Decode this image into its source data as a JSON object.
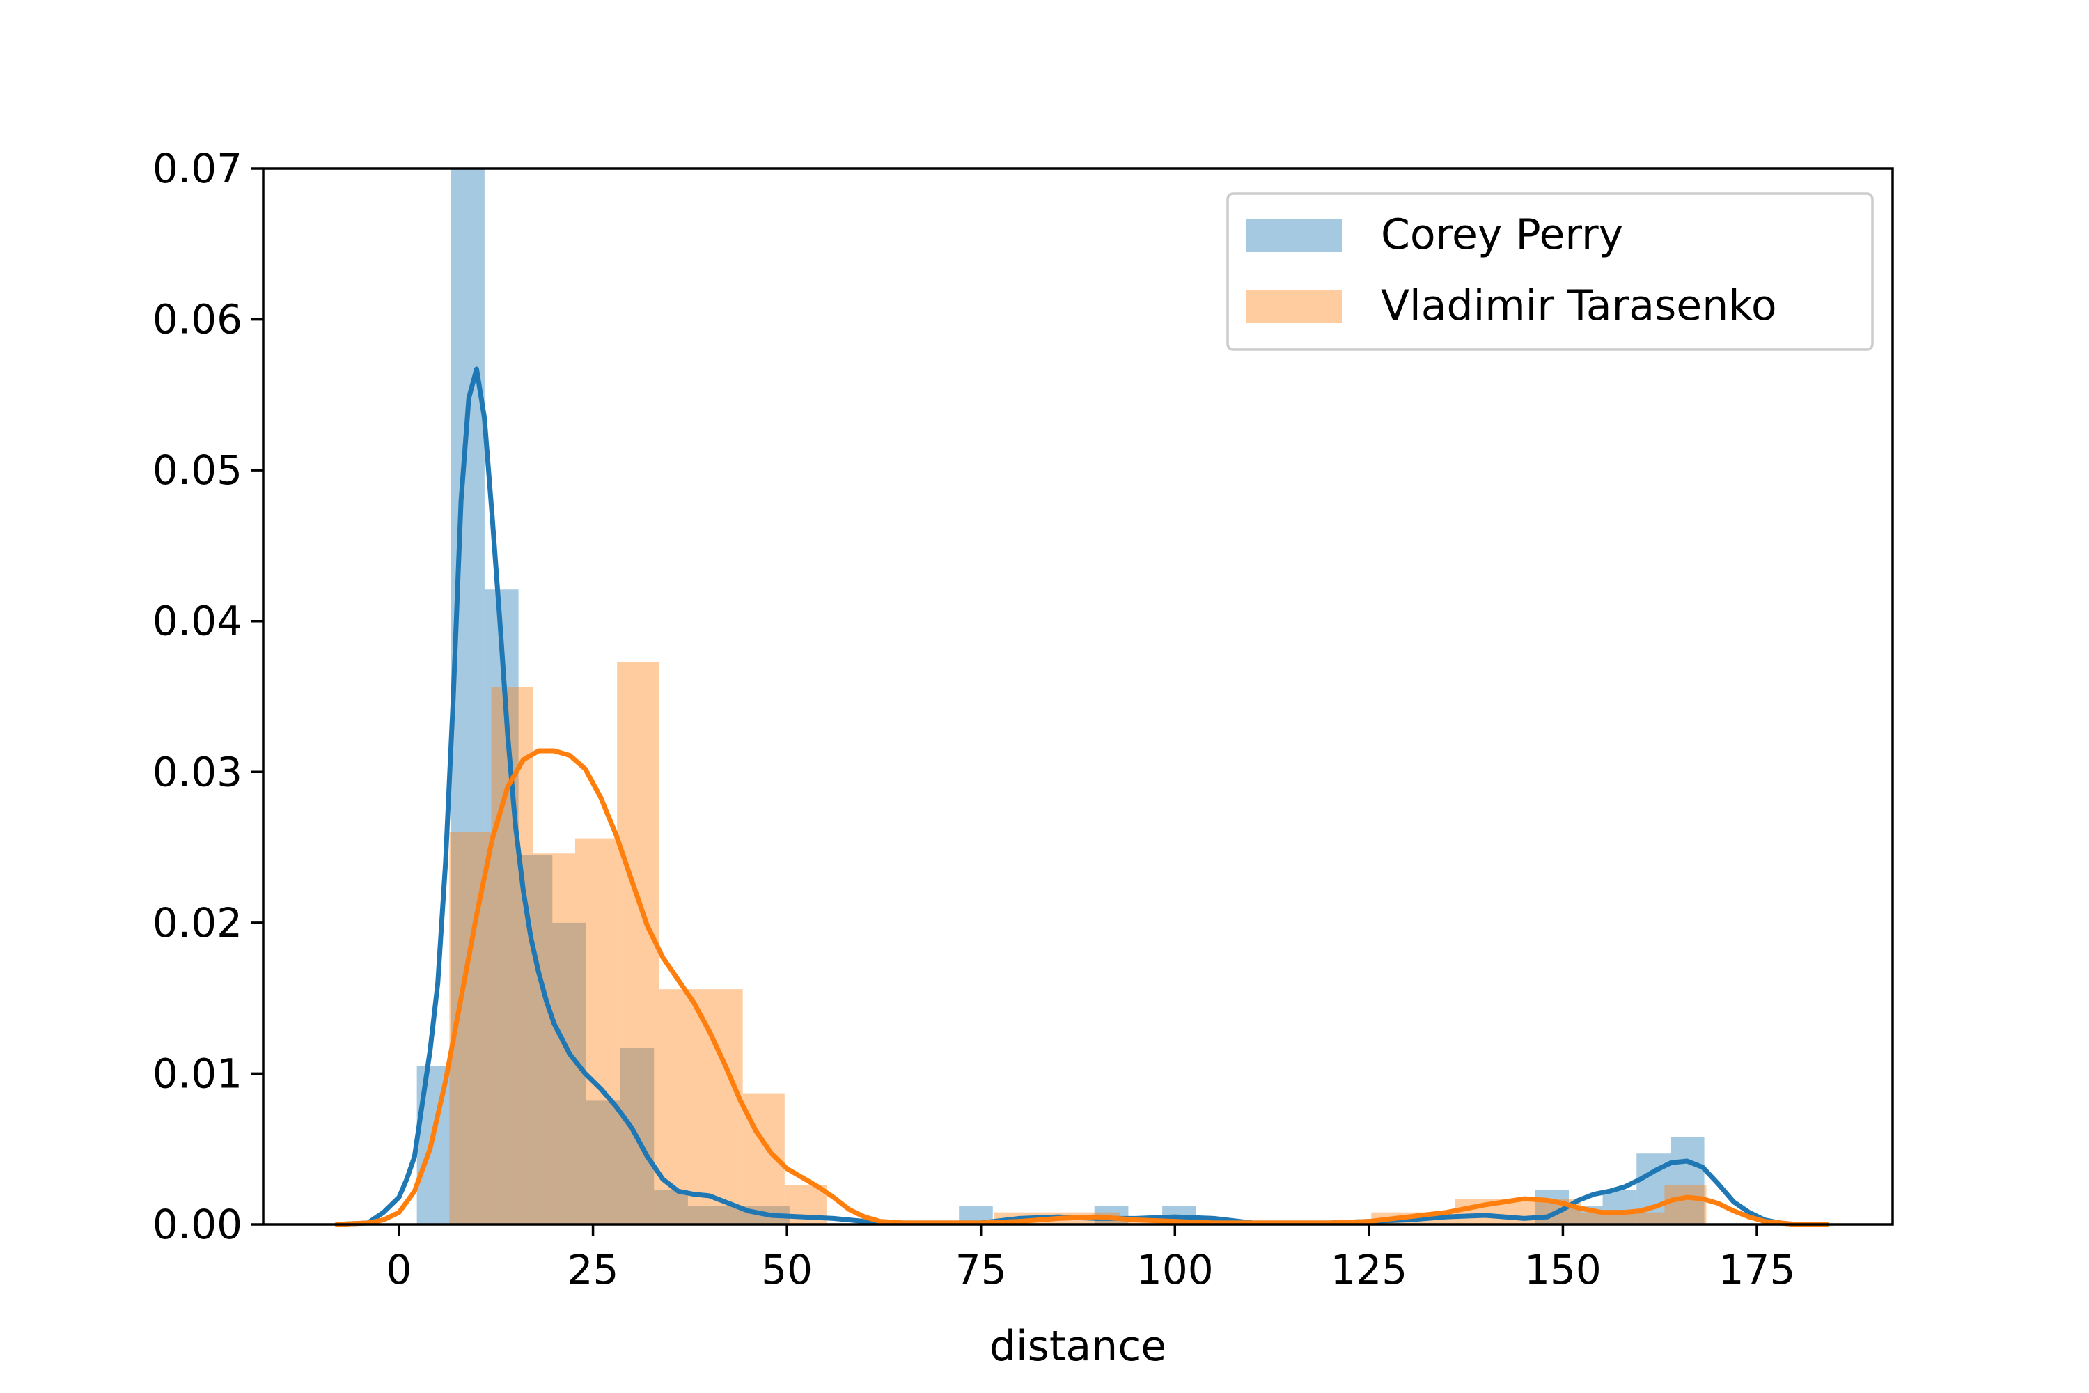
{
  "chart_data": {
    "type": "bar",
    "xlabel": "distance",
    "ylabel": "",
    "xlim": [
      -17.5,
      192.5
    ],
    "ylim": [
      0,
      0.07
    ],
    "x_ticks": [
      0,
      25,
      50,
      75,
      100,
      125,
      150,
      175
    ],
    "x_tick_labels": [
      "0",
      "25",
      "50",
      "75",
      "100",
      "125",
      "150",
      "175"
    ],
    "y_ticks": [
      0,
      0.01,
      0.02,
      0.03,
      0.04,
      0.05,
      0.06,
      0.07
    ],
    "y_tick_labels": [
      "0.00",
      "0.01",
      "0.02",
      "0.03",
      "0.04",
      "0.05",
      "0.06",
      "0.07"
    ],
    "legend_position": "top-right",
    "grid": false,
    "series": [
      {
        "name": "Corey Perry",
        "color": "#1f77b4",
        "hist_color": "#a6c8e0",
        "hist": {
          "bin_edges": [
            2.3,
            6.67,
            11.03,
            15.4,
            19.77,
            24.13,
            28.5,
            32.87,
            37.23,
            41.6,
            45.97,
            50.33,
            54.7,
            59.07,
            63.43,
            67.8,
            72.17,
            76.53,
            80.9,
            85.27,
            89.63,
            94,
            98.37,
            102.73,
            107.1,
            111.47,
            115.83,
            120.2,
            124.57,
            128.93,
            133.3,
            137.67,
            142.03,
            146.4,
            150.77,
            155.13,
            159.5,
            163.87,
            168.23
          ],
          "values": [
            0.0105,
            0.0702,
            0.0421,
            0.0245,
            0.02,
            0.0082,
            0.0117,
            0.0023,
            0.0012,
            0.0012,
            0.0012,
            0,
            0,
            0,
            0,
            0,
            0.0012,
            0,
            0,
            0,
            0.0012,
            0,
            0.0012,
            0,
            0,
            0,
            0,
            0,
            0,
            0,
            0,
            0,
            0,
            0.0023,
            0.0012,
            0.0023,
            0.0047,
            0.0058
          ]
        },
        "kde": {
          "x": [
            -8,
            -4,
            -2,
            0,
            1,
            2,
            3,
            4,
            5,
            6,
            7,
            8,
            9,
            10,
            11,
            12,
            13,
            14,
            15,
            16,
            17,
            18,
            19,
            20,
            22,
            24,
            26,
            28,
            30,
            32,
            34,
            36,
            38,
            40,
            42,
            45,
            48,
            52,
            56,
            60,
            65,
            70,
            75,
            80,
            85,
            90,
            95,
            100,
            105,
            110,
            115,
            120,
            125,
            130,
            135,
            140,
            145,
            148,
            150,
            152,
            154,
            156,
            158,
            160,
            162,
            164,
            166,
            168,
            170,
            172,
            174,
            176,
            178,
            180,
            184
          ],
          "y": [
            0,
            0.0001,
            0.0008,
            0.0018,
            0.003,
            0.0045,
            0.008,
            0.0115,
            0.016,
            0.024,
            0.035,
            0.048,
            0.0548,
            0.0567,
            0.0535,
            0.047,
            0.04,
            0.0325,
            0.0265,
            0.0222,
            0.019,
            0.0167,
            0.0148,
            0.0133,
            0.0113,
            0.01,
            0.009,
            0.0078,
            0.0064,
            0.0045,
            0.003,
            0.0022,
            0.002,
            0.0019,
            0.0015,
            0.0009,
            0.0006,
            0.0005,
            0.0004,
            0.0002,
            0.0001,
            0.0001,
            0.0001,
            0.0004,
            0.0005,
            0.0004,
            0.0004,
            0.0005,
            0.0004,
            0.0001,
            0.0001,
            0.0001,
            0.0002,
            0.0003,
            0.0005,
            0.0006,
            0.0004,
            0.0005,
            0.001,
            0.0016,
            0.002,
            0.0022,
            0.0025,
            0.003,
            0.0036,
            0.0041,
            0.0042,
            0.0038,
            0.0027,
            0.0015,
            0.0008,
            0.0003,
            0.0001,
            0,
            0
          ]
        }
      },
      {
        "name": "Vladimir Tarasenko",
        "color": "#ff7f0e",
        "hist_color": "#ffcc9e",
        "hist": {
          "bin_edges": [
            6.5,
            11.9,
            17.3,
            22.7,
            28.1,
            33.5,
            38.9,
            44.3,
            49.7,
            55.1,
            60.5,
            65.9,
            71.3,
            76.7,
            82.1,
            87.5,
            92.9,
            98.3,
            103.7,
            109.1,
            114.5,
            119.9,
            125.3,
            130.7,
            136.1,
            141.5,
            146.9,
            152.3,
            157.7,
            163.1,
            168.5
          ],
          "values": [
            0.026,
            0.0356,
            0.0246,
            0.0256,
            0.0373,
            0.0156,
            0.0156,
            0.0087,
            0.0026,
            0,
            0,
            0,
            0,
            0.0008,
            0.0008,
            0.0008,
            0.0004,
            0,
            0,
            0,
            0,
            0,
            0.0008,
            0.0008,
            0.0017,
            0.0017,
            0.0017,
            0.0008,
            0.0008,
            0.0026
          ]
        },
        "kde": {
          "x": [
            -8,
            -4,
            -2,
            0,
            2,
            4,
            6,
            8,
            10,
            12,
            14,
            16,
            18,
            20,
            22,
            24,
            26,
            28,
            30,
            32,
            34,
            36,
            38,
            40,
            42,
            44,
            46,
            48,
            50,
            52,
            54,
            56,
            58,
            60,
            62,
            65,
            70,
            75,
            80,
            85,
            90,
            95,
            100,
            105,
            110,
            115,
            120,
            125,
            130,
            135,
            140,
            145,
            148,
            150,
            152,
            155,
            158,
            160,
            162,
            164,
            166,
            168,
            170,
            172,
            174,
            176,
            178,
            180,
            184
          ],
          "y": [
            0,
            0.0001,
            0.0003,
            0.0008,
            0.0022,
            0.005,
            0.0095,
            0.015,
            0.0205,
            0.0255,
            0.029,
            0.0308,
            0.0314,
            0.0314,
            0.0311,
            0.0302,
            0.0283,
            0.0258,
            0.0228,
            0.0198,
            0.0177,
            0.0162,
            0.0147,
            0.0128,
            0.0106,
            0.0082,
            0.0062,
            0.0047,
            0.0037,
            0.0031,
            0.0025,
            0.0018,
            0.001,
            0.0005,
            0.0002,
            0.0001,
            0.0001,
            0.0001,
            0.0002,
            0.0004,
            0.0005,
            0.0003,
            0.0002,
            0.0001,
            0.0001,
            0.0001,
            0.0001,
            0.0002,
            0.0005,
            0.0008,
            0.0013,
            0.0017,
            0.0016,
            0.0014,
            0.0011,
            0.0008,
            0.0008,
            0.0009,
            0.0012,
            0.0016,
            0.0018,
            0.0017,
            0.0014,
            0.0009,
            0.0005,
            0.0002,
            0.0001,
            0,
            0
          ]
        }
      }
    ]
  }
}
